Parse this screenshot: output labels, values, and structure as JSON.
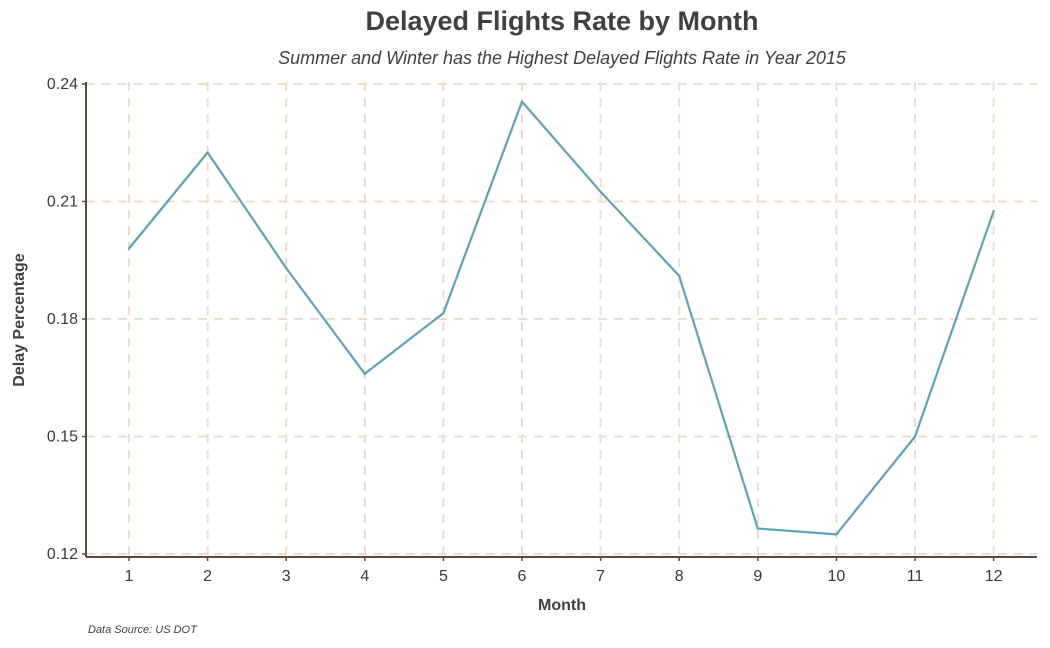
{
  "chart_data": {
    "type": "line",
    "title": "Delayed Flights Rate by Month",
    "subtitle": "Summer and Winter has the Highest Delayed Flights Rate in Year 2015",
    "xlabel": "Month",
    "ylabel": "Delay Percentage",
    "caption": "Data Source: US DOT",
    "x": [
      1,
      2,
      3,
      4,
      5,
      6,
      7,
      8,
      9,
      10,
      11,
      12
    ],
    "values": [
      0.198,
      0.2225,
      0.193,
      0.166,
      0.1815,
      0.2355,
      0.2125,
      0.191,
      0.1265,
      0.125,
      0.15,
      0.2075
    ],
    "xticks": [
      "1",
      "2",
      "3",
      "4",
      "5",
      "6",
      "7",
      "8",
      "9",
      "10",
      "11",
      "12"
    ],
    "yticks": [
      0.12,
      0.15,
      0.18,
      0.21,
      0.24
    ],
    "ytick_labels": [
      "0.12",
      "0.15",
      "0.18",
      "0.21",
      "0.24"
    ],
    "ylim": [
      0.12,
      0.24
    ],
    "grid": true,
    "colors": {
      "line": "#5ba3b5",
      "grid": "#efdccb",
      "axis": "#5c4a3a"
    }
  }
}
